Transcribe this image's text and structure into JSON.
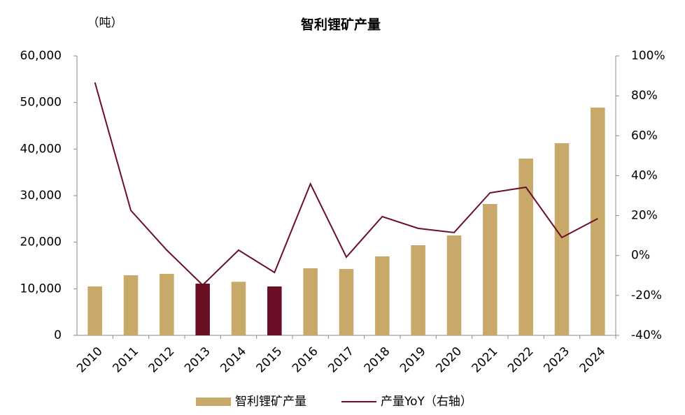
{
  "chart_data": {
    "type": "bar_line",
    "title": "智利锂矿产量",
    "y_unit": "（吨）",
    "categories": [
      "2010",
      "2011",
      "2012",
      "2013",
      "2014",
      "2015",
      "2016",
      "2017",
      "2018",
      "2019",
      "2020",
      "2021",
      "2022",
      "2023",
      "2024"
    ],
    "series": [
      {
        "name": "智利锂矿产量",
        "type": "bar",
        "color": "#c8a96a",
        "point_colors": [
          "#c8a96a",
          "#c8a96a",
          "#c8a96a",
          "#6b0f24",
          "#c8a96a",
          "#6b0f24",
          "#c8a96a",
          "#c8a96a",
          "#c8a96a",
          "#c8a96a",
          "#c8a96a",
          "#c8a96a",
          "#c8a96a",
          "#c8a96a",
          "#c8a96a"
        ],
        "values": [
          10500,
          12900,
          13200,
          11100,
          11500,
          10500,
          14400,
          14250,
          16950,
          19350,
          21450,
          28200,
          37950,
          41250,
          48900
        ]
      },
      {
        "name": "产量YoY（右轴）",
        "type": "line",
        "axis": "y2",
        "color": "#6b0f24",
        "values": [
          86.7,
          22.6,
          2.7,
          -14.8,
          2.7,
          -8.5,
          35.9,
          -0.8,
          19.5,
          13.6,
          11.5,
          31.4,
          34.2,
          9.0,
          18.5
        ]
      }
    ],
    "ylim": [
      0,
      60000
    ],
    "yticks": [
      0,
      {
        "value": 10000,
        "label": "10,000"
      },
      {
        "value": 20000,
        "label": "20,000"
      },
      {
        "value": 30000,
        "label": "30,000"
      },
      {
        "value": 40000,
        "label": "40,000"
      },
      {
        "value": 50000,
        "label": "50,000"
      },
      {
        "value": 60000,
        "label": "60,000"
      }
    ],
    "y2lim": [
      -40,
      100
    ],
    "y2ticks": [
      {
        "value": -40,
        "label": "-40%"
      },
      {
        "value": -20,
        "label": "-20%"
      },
      {
        "value": 0,
        "label": "0%"
      },
      {
        "value": 20,
        "label": "20%"
      },
      {
        "value": 40,
        "label": "40%"
      },
      {
        "value": 60,
        "label": "60%"
      },
      {
        "value": 80,
        "label": "80%"
      },
      {
        "value": 100,
        "label": "100%"
      }
    ],
    "grid": false
  }
}
